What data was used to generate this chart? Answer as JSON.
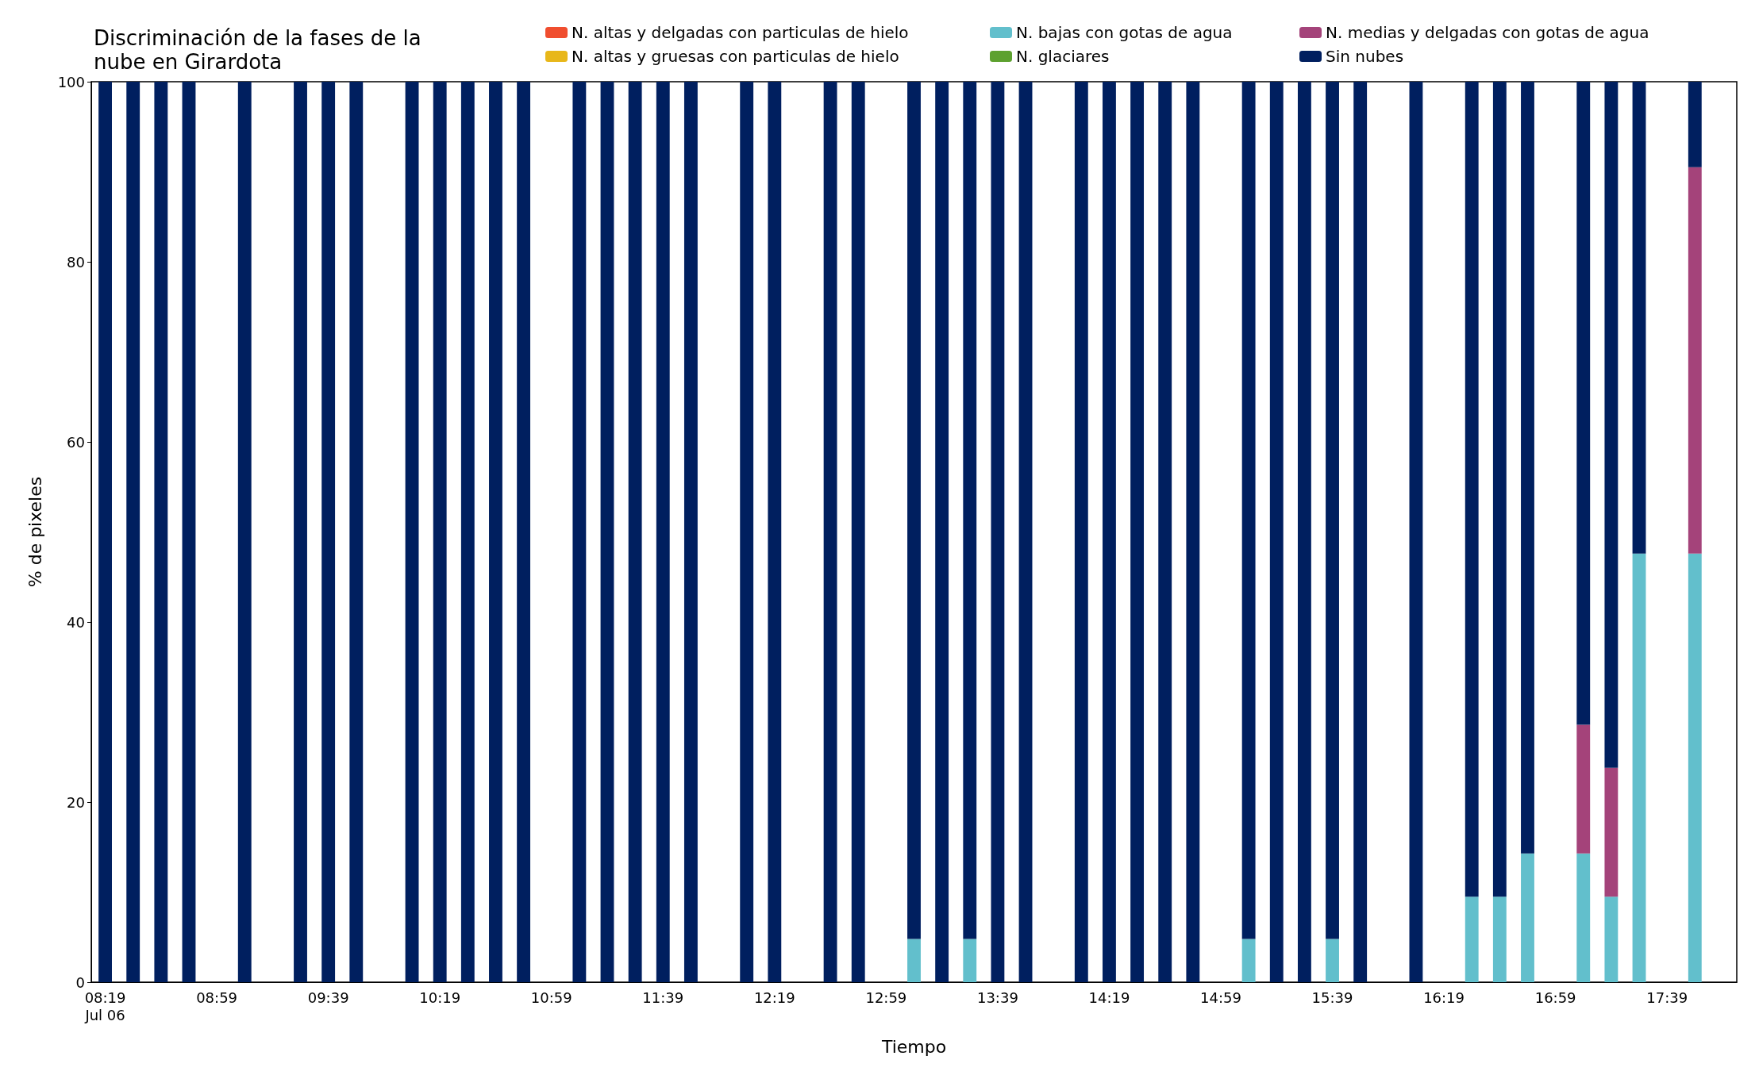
{
  "chart_data": {
    "type": "bar",
    "stacked": true,
    "title": "Discriminación de la fases de la\nnube en Girardota",
    "xlabel": "Tiempo",
    "ylabel": "% de pixeles",
    "legend": "top right",
    "grid": false,
    "ylim": [
      0,
      100
    ],
    "yticks": [
      0,
      20,
      40,
      60,
      80,
      100
    ],
    "categories": [
      "08:19\nJul 06",
      null,
      null,
      null,
      "08:59",
      null,
      null,
      null,
      "09:39",
      null,
      null,
      null,
      "10:19",
      null,
      null,
      null,
      "10:59",
      null,
      null,
      null,
      "11:39",
      null,
      null,
      null,
      "12:19",
      null,
      null,
      null,
      "12:59",
      null,
      null,
      null,
      "13:39",
      null,
      null,
      null,
      "14:19",
      null,
      null,
      null,
      "14:59",
      null,
      null,
      null,
      "15:39",
      null,
      null,
      null,
      "16:19",
      null,
      null,
      null,
      "16:59",
      null,
      null,
      null,
      "17:39",
      null,
      null
    ],
    "series": [
      {
        "name": "N. altas y delgadas con particulas de hielo",
        "color": "#f04e2f",
        "values": [
          0,
          0,
          0,
          0,
          null,
          0,
          null,
          0,
          0,
          0,
          null,
          0,
          0,
          0,
          0,
          0,
          null,
          0,
          0,
          0,
          0,
          0,
          null,
          0,
          0,
          null,
          0,
          0,
          null,
          0,
          0,
          0,
          0,
          0,
          null,
          0,
          0,
          0,
          0,
          0,
          null,
          0,
          0,
          0,
          0,
          0,
          null,
          0,
          null,
          0,
          0,
          0,
          null,
          0,
          0,
          0,
          null,
          0,
          null
        ]
      },
      {
        "name": "N. altas y gruesas con particulas de hielo",
        "color": "#e8b71a",
        "values": [
          0,
          0,
          0,
          0,
          null,
          0,
          null,
          0,
          0,
          0,
          null,
          0,
          0,
          0,
          0,
          0,
          null,
          0,
          0,
          0,
          0,
          0,
          null,
          0,
          0,
          null,
          0,
          0,
          null,
          0,
          0,
          0,
          0,
          0,
          null,
          0,
          0,
          0,
          0,
          0,
          null,
          0,
          0,
          0,
          0,
          0,
          null,
          0,
          null,
          0,
          0,
          0,
          null,
          0,
          0,
          0,
          null,
          0,
          null
        ]
      },
      {
        "name": "N. bajas con gotas de agua",
        "color": "#62bfcc",
        "values": [
          0,
          0,
          0,
          0,
          null,
          0,
          null,
          0,
          0,
          0,
          null,
          0,
          0,
          0,
          0,
          0,
          null,
          0,
          0,
          0,
          0,
          0,
          null,
          0,
          0,
          null,
          0,
          0,
          null,
          4.8,
          0,
          4.8,
          0,
          0,
          null,
          0,
          0,
          0,
          0,
          0,
          null,
          4.8,
          0,
          0,
          4.8,
          0,
          null,
          0,
          null,
          9.5,
          9.5,
          14.3,
          null,
          14.3,
          9.5,
          47.6,
          null,
          47.6,
          null
        ]
      },
      {
        "name": "N. glaciares",
        "color": "#5da12f",
        "values": [
          0,
          0,
          0,
          0,
          null,
          0,
          null,
          0,
          0,
          0,
          null,
          0,
          0,
          0,
          0,
          0,
          null,
          0,
          0,
          0,
          0,
          0,
          null,
          0,
          0,
          null,
          0,
          0,
          null,
          0,
          0,
          0,
          0,
          0,
          null,
          0,
          0,
          0,
          0,
          0,
          null,
          0,
          0,
          0,
          0,
          0,
          null,
          0,
          null,
          0,
          0,
          0,
          null,
          0,
          0,
          0,
          null,
          0,
          null
        ]
      },
      {
        "name": "N. medias y delgadas con gotas de agua",
        "color": "#a4437a",
        "values": [
          0,
          0,
          0,
          0,
          null,
          0,
          null,
          0,
          0,
          0,
          null,
          0,
          0,
          0,
          0,
          0,
          null,
          0,
          0,
          0,
          0,
          0,
          null,
          0,
          0,
          null,
          0,
          0,
          null,
          0,
          0,
          0,
          0,
          0,
          null,
          0,
          0,
          0,
          0,
          0,
          null,
          0,
          0,
          0,
          0,
          0,
          null,
          0,
          null,
          0,
          0,
          0,
          null,
          14.3,
          14.3,
          0,
          null,
          42.9,
          null
        ]
      },
      {
        "name": "Sin nubes",
        "color": "#001f5f",
        "values": [
          100,
          100,
          100,
          100,
          null,
          100,
          null,
          100,
          100,
          100,
          null,
          100,
          100,
          100,
          100,
          100,
          null,
          100,
          100,
          100,
          100,
          100,
          null,
          100,
          100,
          null,
          100,
          100,
          null,
          95.2,
          100,
          95.2,
          100,
          100,
          null,
          100,
          100,
          100,
          100,
          100,
          null,
          95.2,
          100,
          100,
          95.2,
          100,
          null,
          100,
          null,
          90.5,
          90.5,
          85.7,
          null,
          71.4,
          76.2,
          52.4,
          null,
          9.5,
          null
        ]
      }
    ]
  }
}
